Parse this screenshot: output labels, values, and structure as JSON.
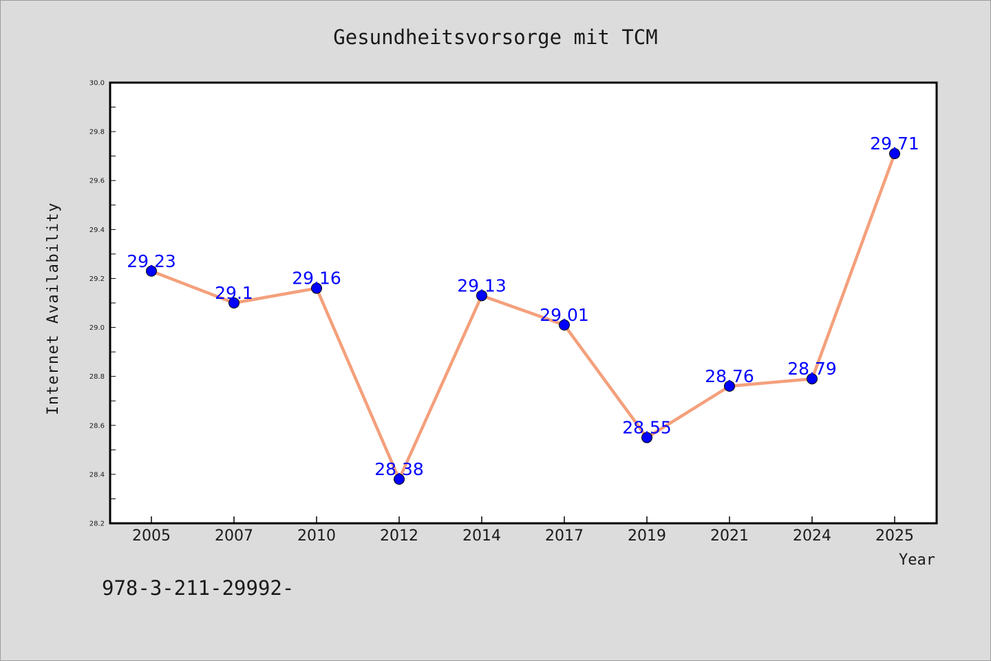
{
  "chart_data": {
    "type": "line",
    "title": "Gesundheitsvorsorge mit TCM",
    "xlabel": "Year",
    "ylabel": "Internet Availability",
    "categories": [
      "2005",
      "2007",
      "2010",
      "2012",
      "2014",
      "2017",
      "2019",
      "2021",
      "2024",
      "2025"
    ],
    "series": [
      {
        "values": [
          29.23,
          29.1,
          29.16,
          28.38,
          29.13,
          29.01,
          28.55,
          28.76,
          28.79,
          29.71
        ],
        "data_labels": [
          "29.23",
          "29.1",
          "29.16",
          "28.38",
          "29.13",
          "29.01",
          "28.55",
          "28.76",
          "28.79",
          "29.71"
        ]
      }
    ],
    "ylim": [
      28.2,
      30.0
    ],
    "yticks": [
      "28.2",
      "28.4",
      "28.6",
      "28.8",
      "29.0",
      "29.2",
      "29.4",
      "29.6",
      "29.8",
      "30.0"
    ],
    "grid": false,
    "line_color": "#f4a07c",
    "marker_color": "#0000ff",
    "label_color": "#0000ff"
  },
  "footnote": "978-3-211-29992-"
}
